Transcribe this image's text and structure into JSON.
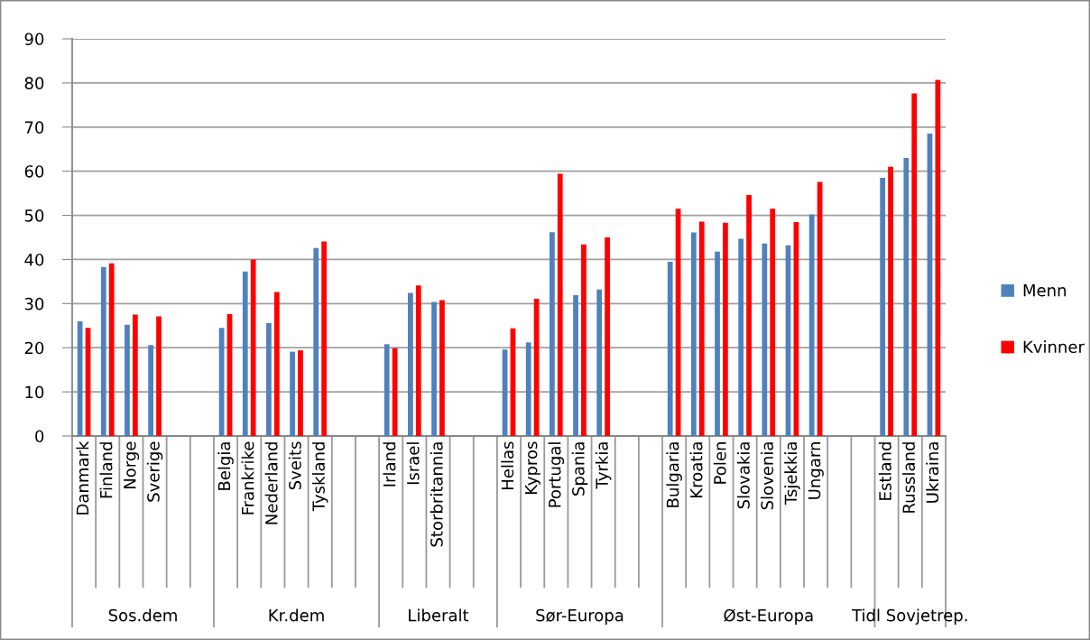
{
  "chart_data": {
    "type": "bar",
    "categories": [
      "Danmark",
      "Finland",
      "Norge",
      "Sverige",
      null,
      null,
      "Belgia",
      "Frankrike",
      "Nederland",
      "Sveits",
      "Tyskland",
      null,
      null,
      "Irland",
      "Israel",
      "Storbritannia",
      null,
      null,
      "Hellas",
      "Kypros",
      "Portugal",
      "Spania",
      "Tyrkia",
      null,
      null,
      "Bulgaria",
      "Kroatia",
      "Polen",
      "Slovakia",
      "Slovenia",
      "Tsjekkia",
      "Ungarn",
      null,
      null,
      "Estland",
      "Russland",
      "Ukraina"
    ],
    "series": [
      {
        "name": "Menn",
        "color": "#4f81bd",
        "values": [
          26.0,
          38.3,
          25.2,
          20.6,
          null,
          null,
          24.5,
          37.3,
          25.6,
          19.1,
          42.6,
          null,
          null,
          20.8,
          32.4,
          30.4,
          null,
          null,
          19.6,
          21.2,
          46.2,
          31.9,
          33.2,
          null,
          null,
          39.5,
          46.1,
          41.8,
          44.7,
          43.6,
          43.2,
          50.2,
          null,
          null,
          58.5,
          63.0,
          68.5
        ]
      },
      {
        "name": "Kvinner",
        "color": "#ff0000",
        "values": [
          24.5,
          39.1,
          27.5,
          27.1,
          null,
          null,
          27.6,
          40.0,
          32.6,
          19.4,
          44.1,
          null,
          null,
          19.9,
          34.1,
          30.8,
          null,
          null,
          24.4,
          31.1,
          59.4,
          43.4,
          45.0,
          null,
          null,
          51.5,
          48.6,
          48.3,
          54.6,
          51.5,
          48.5,
          57.6,
          null,
          null,
          61.0,
          77.6,
          80.7
        ]
      }
    ],
    "annotations": [
      "Sos.dem",
      "Kr.dem",
      "Liberalt",
      "Sør-Europa",
      "Øst-Europa",
      "Tidl Sovjetrep."
    ],
    "ylim": [
      0,
      90
    ],
    "yticks": [
      0,
      10,
      20,
      30,
      40,
      50,
      60,
      70,
      80,
      90
    ],
    "grid": "y",
    "legend": "right"
  }
}
